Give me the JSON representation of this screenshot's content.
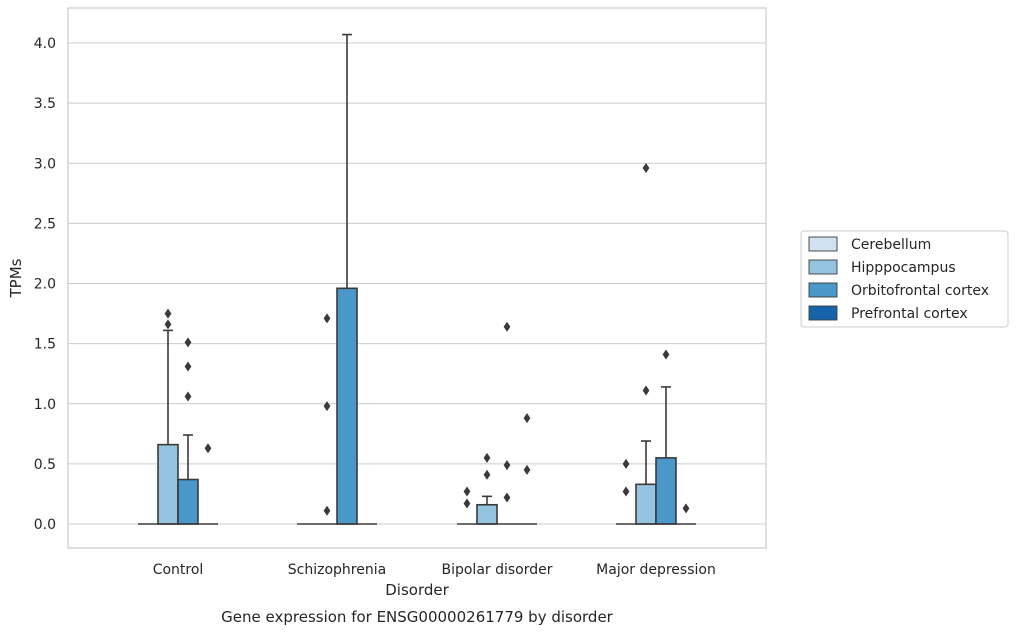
{
  "chart_data": {
    "type": "box",
    "title": "",
    "xlabel": "Disorder",
    "ylabel": "TPMs",
    "caption": "Gene expression for ENSG00000261779 by disorder",
    "categories": [
      "Control",
      "Schizophrenia",
      "Bipolar disorder",
      "Major depression"
    ],
    "ylim": [
      -0.19,
      4.28
    ],
    "yticks": [
      0.0,
      0.5,
      1.0,
      1.5,
      2.0,
      2.5,
      3.0,
      3.5,
      4.0
    ],
    "ytick_labels": [
      "0.0",
      "0.5",
      "1.0",
      "1.5",
      "2.0",
      "2.5",
      "3.0",
      "3.5",
      "4.0"
    ],
    "grid": "horizontal",
    "legend_position": "right",
    "series": [
      {
        "name": "Cerebellum",
        "color": "#d0e1f2",
        "boxes": [
          {
            "q1": 0,
            "median": 0,
            "q3": 0,
            "whisker_low": 0,
            "whisker_high": 0,
            "outliers": []
          },
          {
            "q1": 0,
            "median": 0,
            "q3": 0,
            "whisker_low": 0,
            "whisker_high": 0,
            "outliers": []
          },
          {
            "q1": 0,
            "median": 0,
            "q3": 0,
            "whisker_low": 0,
            "whisker_high": 0,
            "outliers": [
              0.17,
              0.27
            ]
          },
          {
            "q1": 0,
            "median": 0,
            "q3": 0,
            "whisker_low": 0,
            "whisker_high": 0,
            "outliers": [
              0.27,
              0.5
            ]
          }
        ]
      },
      {
        "name": "Hipppocampus",
        "color": "#94c4df",
        "boxes": [
          {
            "q1": 0,
            "median": 0,
            "q3": 0.66,
            "whisker_low": 0,
            "whisker_high": 1.61,
            "outliers": [
              1.66,
              1.75
            ]
          },
          {
            "q1": 0,
            "median": 0,
            "q3": 0,
            "whisker_low": 0,
            "whisker_high": 0,
            "outliers": [
              0.11,
              0.98,
              1.71
            ]
          },
          {
            "q1": 0,
            "median": 0,
            "q3": 0.16,
            "whisker_low": 0,
            "whisker_high": 0.23,
            "outliers": [
              0.41,
              0.55
            ]
          },
          {
            "q1": 0,
            "median": 0,
            "q3": 0.33,
            "whisker_low": 0,
            "whisker_high": 0.69,
            "outliers": [
              1.11,
              2.96
            ]
          }
        ]
      },
      {
        "name": "Orbitofrontal cortex",
        "color": "#4a98c9",
        "boxes": [
          {
            "q1": 0,
            "median": 0,
            "q3": 0.37,
            "whisker_low": 0,
            "whisker_high": 0.74,
            "outliers": [
              1.06,
              1.31,
              1.51
            ]
          },
          {
            "q1": 0,
            "median": 0,
            "q3": 1.96,
            "whisker_low": 0,
            "whisker_high": 4.07,
            "outliers": []
          },
          {
            "q1": 0,
            "median": 0,
            "q3": 0,
            "whisker_low": 0,
            "whisker_high": 0,
            "outliers": [
              0.22,
              0.49,
              1.64
            ]
          },
          {
            "q1": 0,
            "median": 0,
            "q3": 0.55,
            "whisker_low": 0,
            "whisker_high": 1.14,
            "outliers": [
              1.41
            ]
          }
        ]
      },
      {
        "name": "Prefrontal cortex",
        "color": "#1764ab",
        "boxes": [
          {
            "q1": 0,
            "median": 0,
            "q3": 0,
            "whisker_low": 0,
            "whisker_high": 0,
            "outliers": [
              0.63
            ]
          },
          {
            "q1": 0,
            "median": 0,
            "q3": 0,
            "whisker_low": 0,
            "whisker_high": 0,
            "outliers": []
          },
          {
            "q1": 0,
            "median": 0,
            "q3": 0,
            "whisker_low": 0,
            "whisker_high": 0,
            "outliers": [
              0.45,
              0.88
            ]
          },
          {
            "q1": 0,
            "median": 0,
            "q3": 0,
            "whisker_low": 0,
            "whisker_high": 0,
            "outliers": [
              0.13
            ]
          }
        ]
      }
    ]
  }
}
